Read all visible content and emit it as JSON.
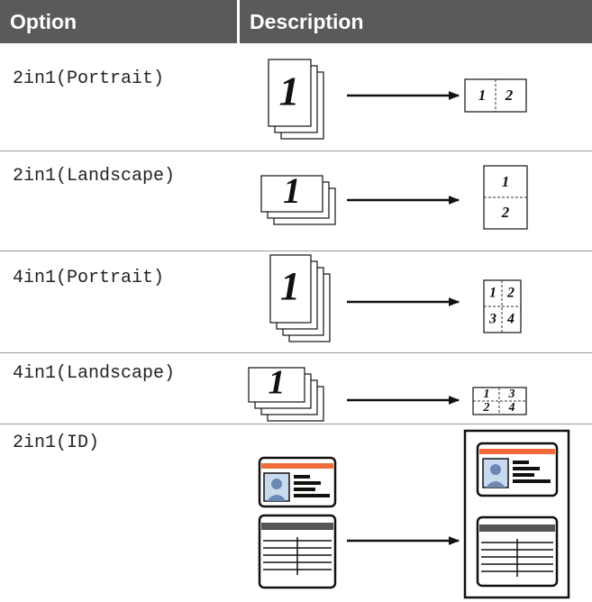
{
  "header": {
    "option": "Option",
    "description": "Description"
  },
  "rows": [
    {
      "option": "2in1(Portrait)",
      "source_page": "1",
      "result_pages": [
        "1",
        "2"
      ]
    },
    {
      "option": "2in1(Landscape)",
      "source_page": "1",
      "result_pages": [
        "1",
        "2"
      ]
    },
    {
      "option": "4in1(Portrait)",
      "source_page": "1",
      "result_pages": [
        "1",
        "2",
        "3",
        "4"
      ]
    },
    {
      "option": "4in1(Landscape)",
      "source_page": "1",
      "result_pages": [
        "1",
        "3",
        "2",
        "4"
      ]
    },
    {
      "option": "2in1(ID)"
    }
  ]
}
